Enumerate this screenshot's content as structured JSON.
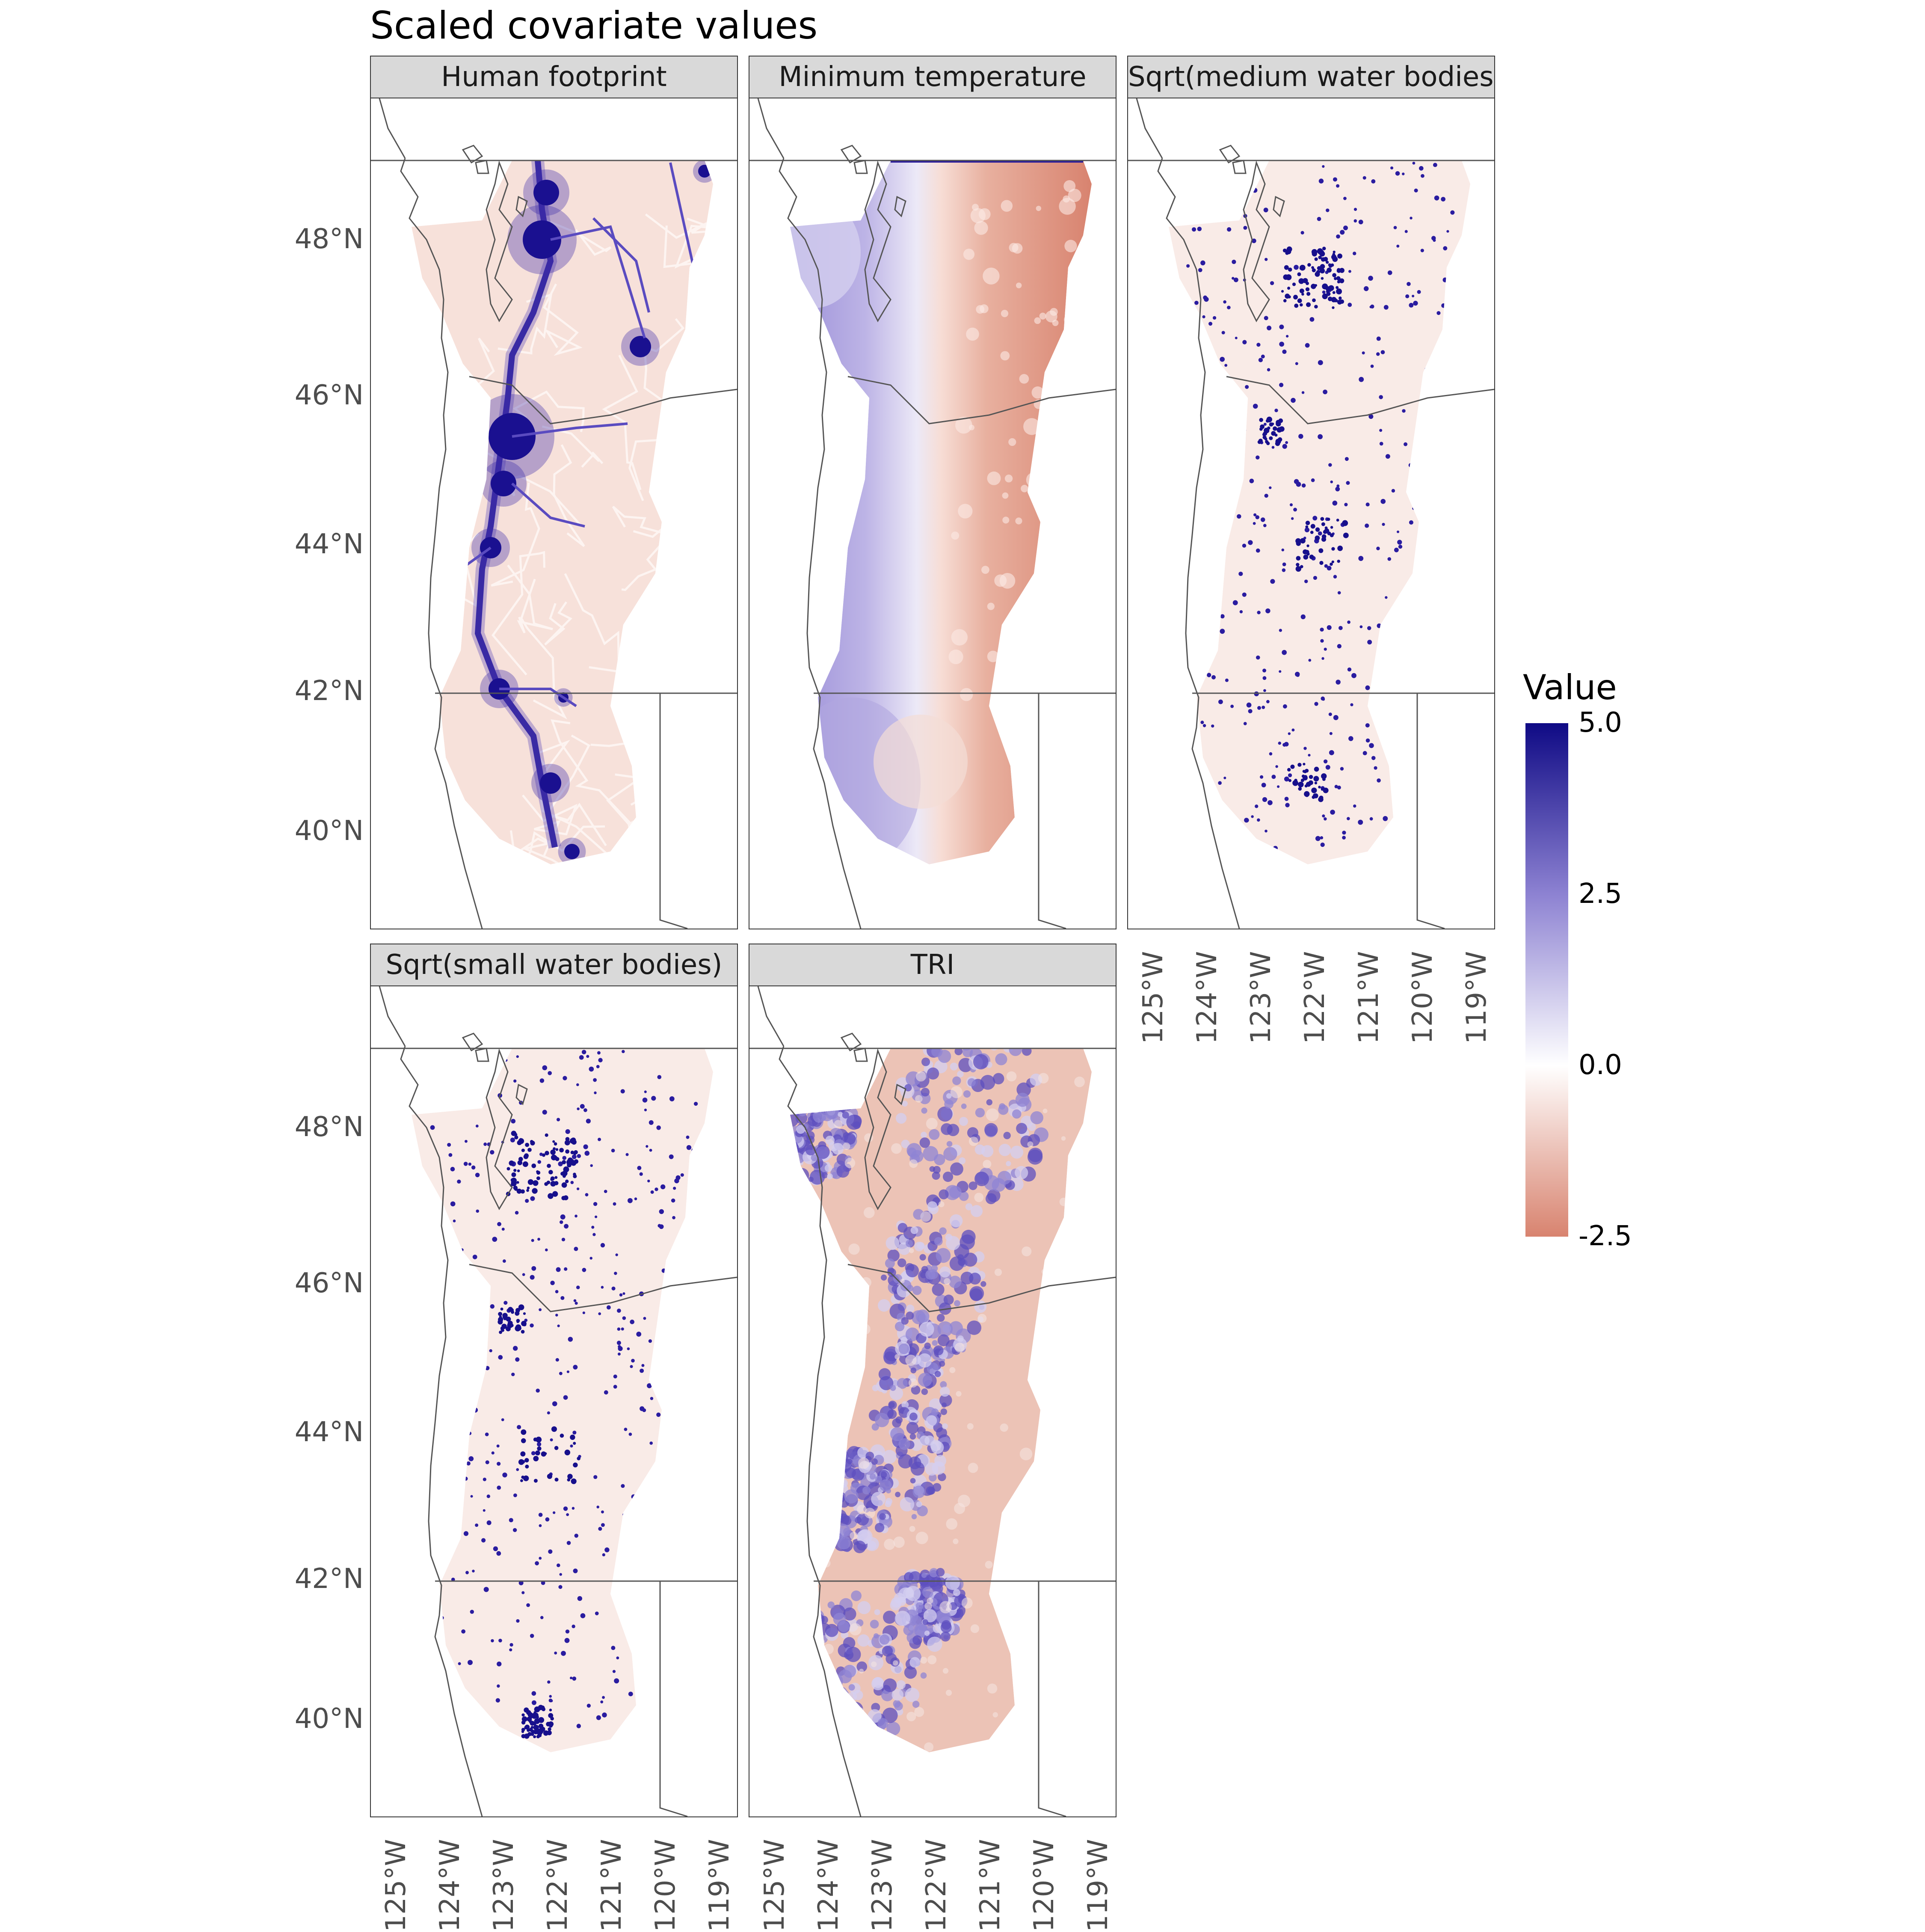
{
  "figure": {
    "title": "Scaled covariate values"
  },
  "panels": [
    {
      "strip_label": "Human footprint",
      "pattern": "footprint"
    },
    {
      "strip_label": "Minimum temperature",
      "pattern": "temperature"
    },
    {
      "strip_label": "Sqrt(medium water bodies)",
      "pattern": "water_medium"
    },
    {
      "strip_label": "Sqrt(small water bodies)",
      "pattern": "water_small"
    },
    {
      "strip_label": "TRI",
      "pattern": "tri"
    }
  ],
  "axes": {
    "y_ticks": [
      {
        "label": "48°N",
        "lat": 48
      },
      {
        "label": "46°N",
        "lat": 46
      },
      {
        "label": "44°N",
        "lat": 44
      },
      {
        "label": "42°N",
        "lat": 42
      },
      {
        "label": "40°N",
        "lat": 40
      }
    ],
    "x_ticks": [
      {
        "label": "125°W",
        "lon": -125
      },
      {
        "label": "124°W",
        "lon": -124
      },
      {
        "label": "123°W",
        "lon": -123
      },
      {
        "label": "122°W",
        "lon": -122
      },
      {
        "label": "121°W",
        "lon": -121
      },
      {
        "label": "120°W",
        "lon": -120
      },
      {
        "label": "119°W",
        "lon": -119
      }
    ]
  },
  "legend": {
    "title": "Value",
    "labels": [
      "5.0",
      "2.5",
      "0.0",
      "-2.5"
    ],
    "label_values": [
      5.0,
      2.5,
      0.0,
      -2.5
    ],
    "range": [
      -2.5,
      5.0
    ],
    "colors": {
      "low": "#d8836f",
      "mid": "#ffffff",
      "high": "#0f0a85"
    }
  },
  "colors": {
    "panel_border": "#333333",
    "strip_fill": "#d9d9d9",
    "state_line": "#666666"
  }
}
